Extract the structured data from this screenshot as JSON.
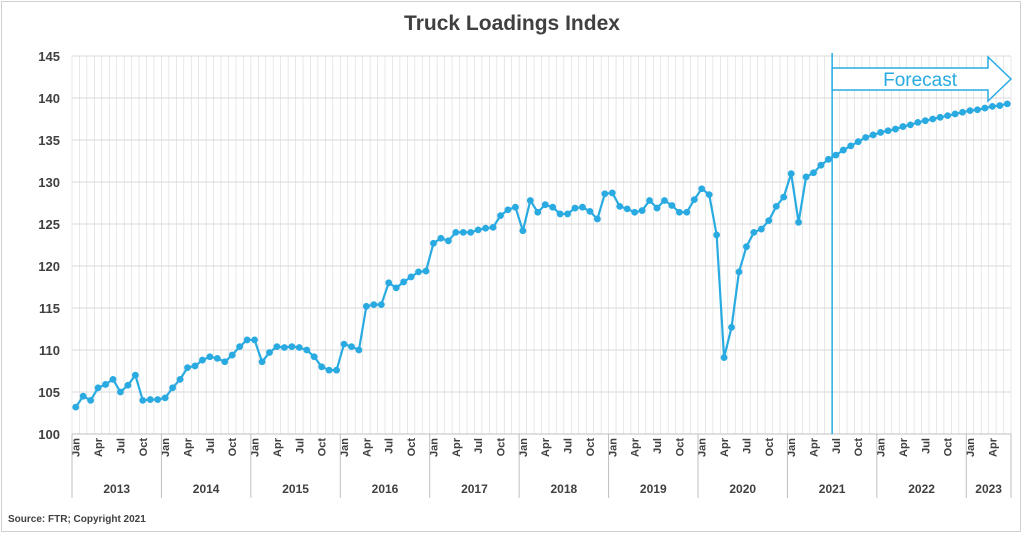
{
  "chart_data": {
    "type": "line",
    "title": "Truck Loadings Index",
    "source": "Source: FTR; Copyright 2021",
    "annotation": "Forecast",
    "ylim": [
      100,
      145
    ],
    "yticks": [
      100,
      105,
      110,
      115,
      120,
      125,
      130,
      135,
      140,
      145
    ],
    "grid": true,
    "legend": "none",
    "start": "Jan 2013",
    "end": "Jun 2023",
    "forecast_start": "Jul 2021",
    "month_ticks": [
      "Jan",
      "Apr",
      "Jul",
      "Oct"
    ],
    "year_groups": [
      "2013",
      "2014",
      "2015",
      "2016",
      "2017",
      "2018",
      "2019",
      "2020",
      "2021",
      "2022",
      "2023"
    ],
    "colors": {
      "line": "#29abe2",
      "forecast": "#29abe2",
      "grid": "#d9d9d9",
      "axis": "#bfbfbf",
      "text": "#404040"
    },
    "series": [
      {
        "values": [
          103.2,
          104.5,
          104.0,
          105.5,
          105.9,
          106.5,
          105.0,
          105.8,
          107.0,
          104.0,
          104.1,
          104.1,
          104.3,
          105.5,
          106.5,
          107.9,
          108.1,
          108.8,
          109.2,
          109.0,
          108.6,
          109.4,
          110.4,
          111.2,
          111.2,
          108.6,
          109.7,
          110.4,
          110.3,
          110.4,
          110.3,
          110.0,
          109.2,
          108.0,
          107.6,
          107.6,
          110.7,
          110.4,
          110.0,
          115.2,
          115.4,
          115.4,
          118.0,
          117.4,
          118.1,
          118.7,
          119.3,
          119.4,
          122.7,
          123.3,
          123.0,
          124.0,
          124.0,
          124.0,
          124.3,
          124.5,
          124.6,
          126.0,
          126.7,
          127.0,
          124.2,
          127.8,
          126.4,
          127.3,
          127.0,
          126.2,
          126.2,
          126.9,
          127.0,
          126.5,
          125.6,
          128.6,
          128.7,
          127.1,
          126.8,
          126.4,
          126.6,
          127.8,
          126.9,
          127.8,
          127.2,
          126.4,
          126.4,
          127.9,
          129.2,
          128.5,
          123.7,
          109.1,
          112.7,
          119.3,
          122.3,
          124.0,
          124.4,
          125.4,
          127.1,
          128.2,
          131.0,
          125.2,
          130.6,
          131.1,
          132.0,
          132.7,
          133.2,
          133.8,
          134.3,
          134.8,
          135.3,
          135.6,
          135.9,
          136.1,
          136.3,
          136.6,
          136.8,
          137.1,
          137.3,
          137.5,
          137.7,
          137.9,
          138.1,
          138.3,
          138.5,
          138.6,
          138.8,
          139.0,
          139.1,
          139.3
        ]
      }
    ]
  }
}
